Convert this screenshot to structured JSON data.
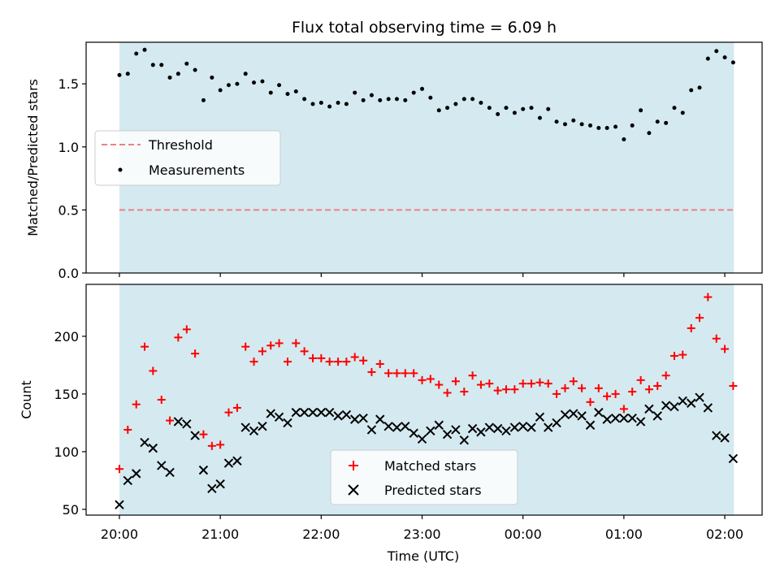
{
  "title": "Flux total observing time = 6.09 h",
  "colors": {
    "shade": "#d4eaf0",
    "threshold": "#f08080",
    "measurement": "#000000",
    "matched": "#ff0000",
    "predicted": "#000000"
  },
  "chart_data": [
    {
      "type": "scatter",
      "title": "Flux total observing time = 6.09 h",
      "ylabel": "Matched/Predicted stars",
      "ylim": [
        0,
        1.83
      ],
      "yticks": [
        0.0,
        0.5,
        1.0,
        1.5
      ],
      "ytick_labels": [
        "0.0",
        "0.5",
        "1.0",
        "1.5"
      ],
      "x_range_hours": [
        -0.33,
        6.37
      ],
      "shaded_span_hours": [
        0,
        6.09
      ],
      "threshold": 0.5,
      "legend": {
        "placement": "center-left",
        "entries": [
          "Threshold",
          "Measurements"
        ]
      },
      "series": [
        {
          "name": "Measurements",
          "marker": "dot",
          "x_hours": [
            0,
            0.083,
            0.167,
            0.25,
            0.333,
            0.417,
            0.5,
            0.583,
            0.667,
            0.75,
            0.833,
            0.917,
            1,
            1.083,
            1.167,
            1.25,
            1.333,
            1.417,
            1.5,
            1.583,
            1.667,
            1.75,
            1.833,
            1.917,
            2,
            2.083,
            2.167,
            2.25,
            2.333,
            2.417,
            2.5,
            2.583,
            2.667,
            2.75,
            2.833,
            2.917,
            3,
            3.083,
            3.167,
            3.25,
            3.333,
            3.417,
            3.5,
            3.583,
            3.667,
            3.75,
            3.833,
            3.917,
            4,
            4.083,
            4.167,
            4.25,
            4.333,
            4.417,
            4.5,
            4.583,
            4.667,
            4.75,
            4.833,
            4.917,
            5,
            5.083,
            5.167,
            5.25,
            5.333,
            5.417,
            5.5,
            5.583,
            5.667,
            5.75,
            5.833,
            5.917,
            6,
            6.083
          ],
          "values": [
            1.57,
            1.58,
            1.74,
            1.77,
            1.65,
            1.65,
            1.55,
            1.58,
            1.66,
            1.61,
            1.37,
            1.55,
            1.45,
            1.49,
            1.5,
            1.58,
            1.51,
            1.52,
            1.43,
            1.49,
            1.42,
            1.44,
            1.38,
            1.34,
            1.35,
            1.32,
            1.35,
            1.34,
            1.43,
            1.37,
            1.41,
            1.37,
            1.38,
            1.38,
            1.37,
            1.43,
            1.46,
            1.39,
            1.29,
            1.31,
            1.34,
            1.38,
            1.38,
            1.35,
            1.31,
            1.26,
            1.31,
            1.27,
            1.3,
            1.31,
            1.23,
            1.3,
            1.2,
            1.18,
            1.21,
            1.18,
            1.17,
            1.15,
            1.15,
            1.16,
            1.06,
            1.17,
            1.29,
            1.11,
            1.2,
            1.19,
            1.31,
            1.27,
            1.45,
            1.47,
            1.7,
            1.76,
            1.71,
            1.67
          ]
        }
      ]
    },
    {
      "type": "scatter",
      "xlabel": "Time (UTC)",
      "ylabel": "Count",
      "ylim": [
        45,
        245
      ],
      "yticks": [
        50,
        100,
        150,
        200
      ],
      "ytick_labels": [
        "50",
        "100",
        "150",
        "200"
      ],
      "x_range_hours": [
        -0.33,
        6.37
      ],
      "xticks_hours": [
        0,
        1,
        2,
        3,
        4,
        5,
        6
      ],
      "xtick_labels": [
        "20:00",
        "21:00",
        "22:00",
        "23:00",
        "00:00",
        "01:00",
        "02:00"
      ],
      "shaded_span_hours": [
        0,
        6.09
      ],
      "legend": {
        "placement": "lower-center",
        "entries": [
          "Matched stars",
          "Predicted stars"
        ]
      },
      "series": [
        {
          "name": "Matched stars",
          "marker": "plus",
          "x_hours": [
            0,
            0.083,
            0.167,
            0.25,
            0.333,
            0.417,
            0.5,
            0.583,
            0.667,
            0.75,
            0.833,
            0.917,
            1,
            1.083,
            1.167,
            1.25,
            1.333,
            1.417,
            1.5,
            1.583,
            1.667,
            1.75,
            1.833,
            1.917,
            2,
            2.083,
            2.167,
            2.25,
            2.333,
            2.417,
            2.5,
            2.583,
            2.667,
            2.75,
            2.833,
            2.917,
            3,
            3.083,
            3.167,
            3.25,
            3.333,
            3.417,
            3.5,
            3.583,
            3.667,
            3.75,
            3.833,
            3.917,
            4,
            4.083,
            4.167,
            4.25,
            4.333,
            4.417,
            4.5,
            4.583,
            4.667,
            4.75,
            4.833,
            4.917,
            5,
            5.083,
            5.167,
            5.25,
            5.333,
            5.417,
            5.5,
            5.583,
            5.667,
            5.75,
            5.833,
            5.917,
            6,
            6.083
          ],
          "values": [
            85,
            119,
            141,
            191,
            170,
            145,
            127,
            199,
            206,
            185,
            115,
            105,
            106,
            134,
            138,
            191,
            178,
            187,
            192,
            194,
            178,
            194,
            187,
            181,
            181,
            178,
            178,
            178,
            182,
            179,
            169,
            176,
            168,
            168,
            168,
            168,
            162,
            163,
            158,
            151,
            161,
            152,
            166,
            158,
            159,
            153,
            154,
            154,
            159,
            159,
            160,
            159,
            150,
            155,
            161,
            155,
            143,
            155,
            148,
            150,
            137,
            152,
            162,
            154,
            157,
            166,
            183,
            184,
            207,
            216,
            234,
            198,
            189,
            157
          ]
        },
        {
          "name": "Predicted stars",
          "marker": "x",
          "x_hours": [
            0,
            0.083,
            0.167,
            0.25,
            0.333,
            0.417,
            0.5,
            0.583,
            0.667,
            0.75,
            0.833,
            0.917,
            1,
            1.083,
            1.167,
            1.25,
            1.333,
            1.417,
            1.5,
            1.583,
            1.667,
            1.75,
            1.833,
            1.917,
            2,
            2.083,
            2.167,
            2.25,
            2.333,
            2.417,
            2.5,
            2.583,
            2.667,
            2.75,
            2.833,
            2.917,
            3,
            3.083,
            3.167,
            3.25,
            3.333,
            3.417,
            3.5,
            3.583,
            3.667,
            3.75,
            3.833,
            3.917,
            4,
            4.083,
            4.167,
            4.25,
            4.333,
            4.417,
            4.5,
            4.583,
            4.667,
            4.75,
            4.833,
            4.917,
            5,
            5.083,
            5.167,
            5.25,
            5.333,
            5.417,
            5.5,
            5.583,
            5.667,
            5.75,
            5.833,
            5.917,
            6,
            6.083
          ],
          "values": [
            54,
            75,
            81,
            108,
            103,
            88,
            82,
            126,
            124,
            114,
            84,
            68,
            72,
            90,
            92,
            121,
            118,
            122,
            133,
            130,
            125,
            134,
            134,
            134,
            134,
            134,
            131,
            132,
            128,
            129,
            119,
            128,
            122,
            121,
            122,
            116,
            111,
            118,
            123,
            115,
            119,
            110,
            120,
            117,
            121,
            120,
            118,
            121,
            122,
            121,
            130,
            121,
            125,
            132,
            133,
            131,
            123,
            134,
            128,
            129,
            129,
            129,
            126,
            137,
            131,
            140,
            139,
            144,
            142,
            147,
            138,
            114,
            112,
            94
          ]
        }
      ]
    }
  ]
}
